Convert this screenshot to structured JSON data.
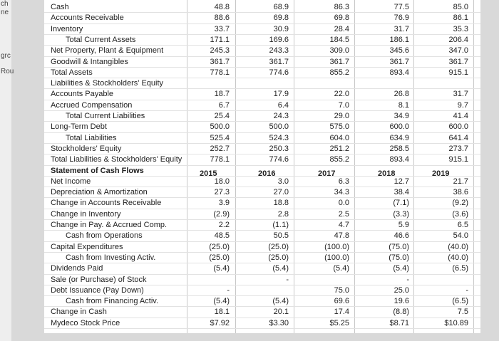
{
  "side_fragments": [
    "ch",
    "ne",
    "grc",
    "Rou"
  ],
  "table": {
    "years": [
      "2015",
      "2016",
      "2017",
      "2018",
      "2019"
    ],
    "rows": [
      {
        "label": "Cash",
        "values": [
          "48.8",
          "68.9",
          "86.3",
          "77.5",
          "85.0"
        ]
      },
      {
        "label": "Accounts Receivable",
        "values": [
          "88.6",
          "69.8",
          "69.8",
          "76.9",
          "86.1"
        ]
      },
      {
        "label": "Inventory",
        "values": [
          "33.7",
          "30.9",
          "28.4",
          "31.7",
          "35.3"
        ]
      },
      {
        "label": "Total Current Assets",
        "values": [
          "171.1",
          "169.6",
          "184.5",
          "186.1",
          "206.4"
        ]
      },
      {
        "label": "Net Property, Plant & Equipment",
        "values": [
          "245.3",
          "243.3",
          "309.0",
          "345.6",
          "347.0"
        ]
      },
      {
        "label": "Goodwill & Intangibles",
        "values": [
          "361.7",
          "361.7",
          "361.7",
          "361.7",
          "361.7"
        ]
      },
      {
        "label": "Total Assets",
        "values": [
          "778.1",
          "774.6",
          "855.2",
          "893.4",
          "915.1"
        ]
      },
      {
        "label": "Liabilities & Stockholders' Equity",
        "values": [
          null,
          null,
          null,
          null,
          null
        ]
      },
      {
        "label": "Accounts Payable",
        "values": [
          "18.7",
          "17.9",
          "22.0",
          "26.8",
          "31.7"
        ]
      },
      {
        "label": "Accrued Compensation",
        "values": [
          "6.7",
          "6.4",
          "7.0",
          "8.1",
          "9.7"
        ]
      },
      {
        "label": "Total Current Liabilities",
        "values": [
          "25.4",
          "24.3",
          "29.0",
          "34.9",
          "41.4"
        ]
      },
      {
        "label": "Long-Term Debt",
        "values": [
          "500.0",
          "500.0",
          "575.0",
          "600.0",
          "600.0"
        ]
      },
      {
        "label": "Total Liabilities",
        "values": [
          "525.4",
          "524.3",
          "604.0",
          "634.9",
          "641.4"
        ]
      },
      {
        "label": "Stockholders' Equity",
        "values": [
          "252.7",
          "250.3",
          "251.2",
          "258.5",
          "273.7"
        ]
      },
      {
        "label": "Total Liabilities & Stockholders' Equity",
        "values": [
          "778.1",
          "774.6",
          "855.2",
          "893.4",
          "915.1"
        ]
      },
      {
        "label": "Statement of Cash Flows",
        "values": [
          null,
          null,
          null,
          null,
          null
        ]
      },
      {
        "label": "Net Income",
        "values": [
          "18.0",
          "3.0",
          "6.3",
          "12.7",
          "21.7"
        ]
      },
      {
        "label": "Depreciation & Amortization",
        "values": [
          "27.3",
          "27.0",
          "34.3",
          "38.4",
          "38.6"
        ]
      },
      {
        "label": "Change in Accounts Receivable",
        "values": [
          "3.9",
          "18.8",
          "0.0",
          "(7.1)",
          "(9.2)"
        ]
      },
      {
        "label": "Change in Inventory",
        "values": [
          "(2.9)",
          "2.8",
          "2.5",
          "(3.3)",
          "(3.6)"
        ]
      },
      {
        "label": "Change in Pay. & Accrued Comp.",
        "values": [
          "2.2",
          "(1.1)",
          "4.7",
          "5.9",
          "6.5"
        ]
      },
      {
        "label": "Cash from Operations",
        "values": [
          "48.5",
          "50.5",
          "47.8",
          "46.6",
          "54.0"
        ]
      },
      {
        "label": "Capital Expenditures",
        "values": [
          "(25.0)",
          "(25.0)",
          "(100.0)",
          "(75.0)",
          "(40.0)"
        ]
      },
      {
        "label": "Cash from Investing Activ.",
        "values": [
          "(25.0)",
          "(25.0)",
          "(100.0)",
          "(75.0)",
          "(40.0)"
        ]
      },
      {
        "label": "Dividends Paid",
        "values": [
          "(5.4)",
          "(5.4)",
          "(5.4)",
          "(5.4)",
          "(6.5)"
        ]
      },
      {
        "label": "Sale (or Purchase) of Stock",
        "values": [
          null,
          "-",
          null,
          "-",
          null
        ]
      },
      {
        "label": "Debt Issuance (Pay Down)",
        "values": [
          "-",
          null,
          "75.0",
          "25.0",
          "-"
        ]
      },
      {
        "label": "Cash from Financing Activ.",
        "values": [
          "(5.4)",
          "(5.4)",
          "69.6",
          "19.6",
          "(6.5)"
        ]
      },
      {
        "label": "Change in Cash",
        "values": [
          "18.1",
          "20.1",
          "17.4",
          "(8.8)",
          "7.5"
        ]
      },
      {
        "label": "Mydeco Stock Price",
        "values": [
          "$7.92",
          "$3.30",
          "$5.25",
          "$8.71",
          "$10.89"
        ]
      }
    ]
  }
}
